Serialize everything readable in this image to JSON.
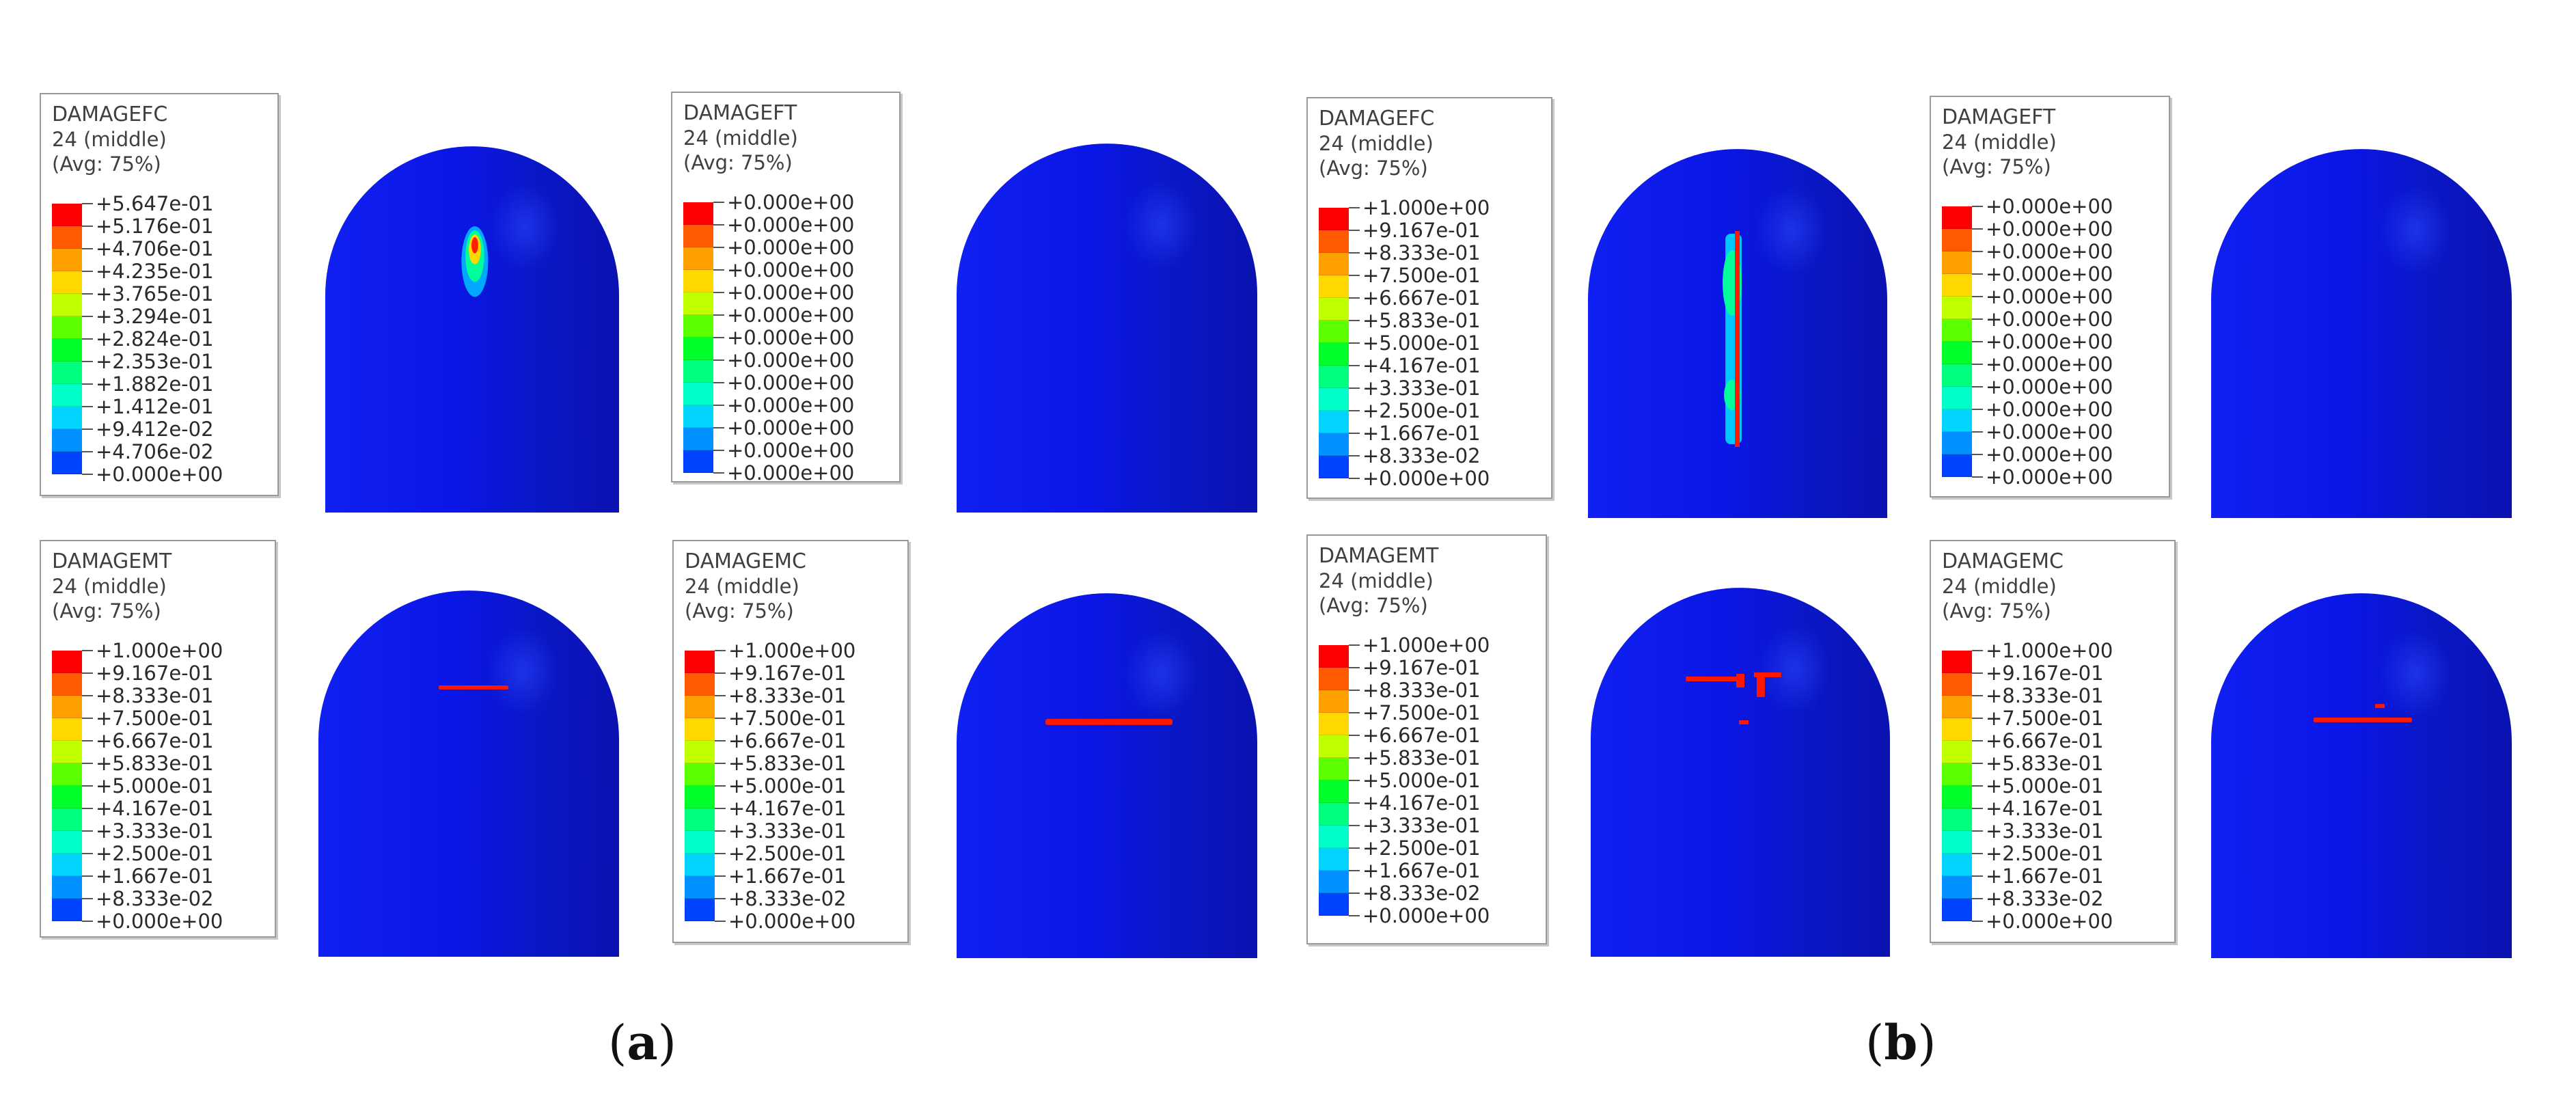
{
  "colors": {
    "scale": [
      "#0000ff",
      "#0043ff",
      "#0090ff",
      "#00d4ff",
      "#00ffc8",
      "#00ff7e",
      "#00ff2a",
      "#5bff00",
      "#bfff00",
      "#ffd800",
      "#ffa000",
      "#ff5a00",
      "#ff0000"
    ],
    "shell_base": "#0a16e6",
    "shell_shade": "#0a12b0",
    "damage": "#ff1800"
  },
  "panel_labels": [
    {
      "open": "(",
      "letter": "a",
      "close": ")"
    },
    {
      "open": "(",
      "letter": "b",
      "close": ")"
    }
  ],
  "legends": [
    {
      "id": "a-fc",
      "variable": "DAMAGEFC",
      "section": "24 (middle)",
      "avg": "(Avg: 75%)",
      "ticks": [
        "+5.647e-01",
        "+5.176e-01",
        "+4.706e-01",
        "+4.235e-01",
        "+3.765e-01",
        "+3.294e-01",
        "+2.824e-01",
        "+2.353e-01",
        "+1.882e-01",
        "+1.412e-01",
        "+9.412e-02",
        "+4.706e-02",
        "+0.000e+00"
      ]
    },
    {
      "id": "a-ft",
      "variable": "DAMAGEFT",
      "section": "24 (middle)",
      "avg": "(Avg: 75%)",
      "ticks": [
        "+0.000e+00",
        "+0.000e+00",
        "+0.000e+00",
        "+0.000e+00",
        "+0.000e+00",
        "+0.000e+00",
        "+0.000e+00",
        "+0.000e+00",
        "+0.000e+00",
        "+0.000e+00",
        "+0.000e+00",
        "+0.000e+00",
        "+0.000e+00"
      ]
    },
    {
      "id": "b-fc",
      "variable": "DAMAGEFC",
      "section": "24 (middle)",
      "avg": "(Avg: 75%)",
      "ticks": [
        "+1.000e+00",
        "+9.167e-01",
        "+8.333e-01",
        "+7.500e-01",
        "+6.667e-01",
        "+5.833e-01",
        "+5.000e-01",
        "+4.167e-01",
        "+3.333e-01",
        "+2.500e-01",
        "+1.667e-01",
        "+8.333e-02",
        "+0.000e+00"
      ]
    },
    {
      "id": "b-ft",
      "variable": "DAMAGEFT",
      "section": "24 (middle)",
      "avg": "(Avg: 75%)",
      "ticks": [
        "+0.000e+00",
        "+0.000e+00",
        "+0.000e+00",
        "+0.000e+00",
        "+0.000e+00",
        "+0.000e+00",
        "+0.000e+00",
        "+0.000e+00",
        "+0.000e+00",
        "+0.000e+00",
        "+0.000e+00",
        "+0.000e+00",
        "+0.000e+00"
      ]
    },
    {
      "id": "a-mt",
      "variable": "DAMAGEMT",
      "section": "24 (middle)",
      "avg": "(Avg: 75%)",
      "ticks": [
        "+1.000e+00",
        "+9.167e-01",
        "+8.333e-01",
        "+7.500e-01",
        "+6.667e-01",
        "+5.833e-01",
        "+5.000e-01",
        "+4.167e-01",
        "+3.333e-01",
        "+2.500e-01",
        "+1.667e-01",
        "+8.333e-02",
        "+0.000e+00"
      ]
    },
    {
      "id": "a-mc",
      "variable": "DAMAGEMC",
      "section": "24 (middle)",
      "avg": "(Avg: 75%)",
      "ticks": [
        "+1.000e+00",
        "+9.167e-01",
        "+8.333e-01",
        "+7.500e-01",
        "+6.667e-01",
        "+5.833e-01",
        "+5.000e-01",
        "+4.167e-01",
        "+3.333e-01",
        "+2.500e-01",
        "+1.667e-01",
        "+8.333e-02",
        "+0.000e+00"
      ]
    },
    {
      "id": "b-mt",
      "variable": "DAMAGEMT",
      "section": "24 (middle)",
      "avg": "(Avg: 75%)",
      "ticks": [
        "+1.000e+00",
        "+9.167e-01",
        "+8.333e-01",
        "+7.500e-01",
        "+6.667e-01",
        "+5.833e-01",
        "+5.000e-01",
        "+4.167e-01",
        "+3.333e-01",
        "+2.500e-01",
        "+1.667e-01",
        "+8.333e-02",
        "+0.000e+00"
      ]
    },
    {
      "id": "b-mc",
      "variable": "DAMAGEMC",
      "section": "24 (middle)",
      "avg": "(Avg: 75%)",
      "ticks": [
        "+1.000e+00",
        "+9.167e-01",
        "+8.333e-01",
        "+7.500e-01",
        "+6.667e-01",
        "+5.833e-01",
        "+5.000e-01",
        "+4.167e-01",
        "+3.333e-01",
        "+2.500e-01",
        "+1.667e-01",
        "+8.333e-02",
        "+0.000e+00"
      ]
    }
  ],
  "models": [
    {
      "id": "a-fc",
      "damage": "fiber-compression-spot"
    },
    {
      "id": "a-ft",
      "damage": "none"
    },
    {
      "id": "b-fc",
      "damage": "fiber-compression-vertical-crack"
    },
    {
      "id": "b-ft",
      "damage": "none"
    },
    {
      "id": "a-mt",
      "damage": "matrix-tension-short-crack"
    },
    {
      "id": "a-mc",
      "damage": "matrix-compression-long-crack"
    },
    {
      "id": "b-mt",
      "damage": "matrix-tension-multiple-cracks"
    },
    {
      "id": "b-mc",
      "damage": "matrix-compression-crack-with-fragment"
    }
  ]
}
